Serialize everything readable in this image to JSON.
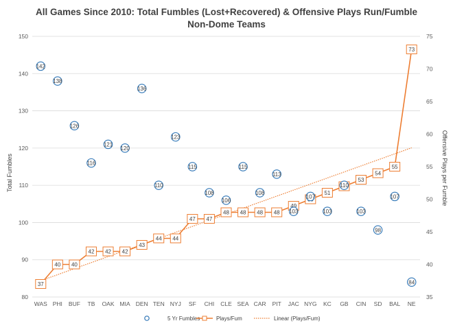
{
  "chart_data": {
    "type": "line",
    "title": "All Games Since 2010: Total Fumbles (Lost+Recovered) & Offensive Plays Run/Fumble",
    "subtitle": "Non-Dome Teams",
    "ylabel": "Total Fumbles",
    "y2label": "Offensive Plays per Fumble",
    "ylim": [
      80,
      150
    ],
    "y2lim": [
      35,
      75
    ],
    "yticks": [
      "80",
      "90",
      "100",
      "110",
      "120",
      "130",
      "140",
      "150"
    ],
    "y2ticks": [
      "35",
      "40",
      "45",
      "50",
      "55",
      "60",
      "65",
      "70",
      "75"
    ],
    "categories": [
      "WAS",
      "PHI",
      "BUF",
      "TB",
      "OAK",
      "MIA",
      "DEN",
      "TEN",
      "NYJ",
      "SF",
      "CHI",
      "CLE",
      "SEA",
      "CAR",
      "PIT",
      "JAC",
      "NYG",
      "KC",
      "GB",
      "CIN",
      "SD",
      "BAL",
      "NE"
    ],
    "series": [
      {
        "name": "5 Yr Fumbles",
        "axis": "left",
        "values": [
          142,
          138,
          126,
          116,
          121,
          120,
          136,
          110,
          123,
          115,
          108,
          106,
          115,
          108,
          113,
          103,
          107,
          103,
          110,
          103,
          98,
          107,
          84
        ],
        "color": "#2e75b6"
      },
      {
        "name": "Plays/Fum",
        "axis": "right",
        "values": [
          37,
          40,
          40,
          42,
          42,
          42,
          43,
          44,
          44,
          47,
          47,
          48,
          48,
          48,
          48,
          49,
          50,
          51,
          52,
          53,
          54,
          55,
          73
        ],
        "color": "#ed7d31"
      },
      {
        "name": "Linear (Plays/Fum)",
        "axis": "right",
        "trendline": [
          37.5,
          57.9
        ],
        "color": "#ed7d31"
      }
    ],
    "legend_position": "bottom",
    "grid": true
  }
}
